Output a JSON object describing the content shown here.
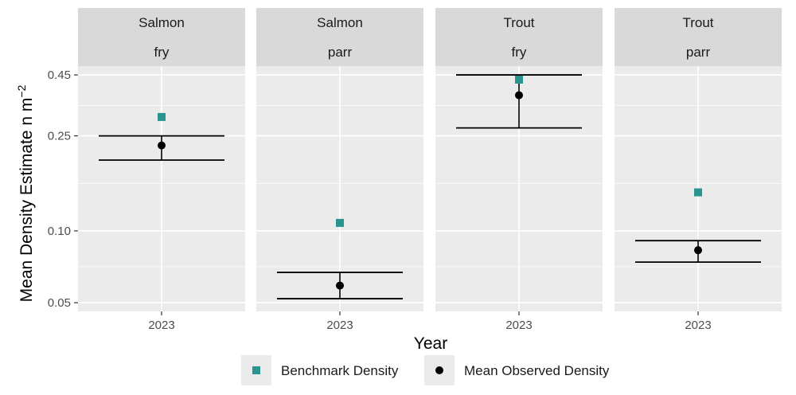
{
  "chart_data": {
    "type": "scatter",
    "title": "",
    "xlabel": "Year",
    "ylabel": "Mean Density Estimate n m",
    "ylabel_superscript": "−2",
    "y_scale": "log",
    "ylim": [
      0.046,
      0.49
    ],
    "yticks": [
      0.05,
      0.1,
      0.25,
      0.45
    ],
    "ytick_labels": [
      "0.05",
      "0.10",
      "0.25",
      "0.45"
    ],
    "legend_position": "bottom",
    "colors": {
      "benchmark": "#2a9490",
      "observed": "#000000"
    },
    "series": [
      {
        "name": "Benchmark Density",
        "marker": "square",
        "color": "#2a9490"
      },
      {
        "name": "Mean Observed Density",
        "marker": "circle",
        "color": "#000000"
      }
    ],
    "panels": [
      {
        "species": "Salmon",
        "stage": "fry",
        "x": "2023",
        "benchmark": 0.3,
        "mean": 0.228,
        "lower": 0.198,
        "upper": 0.25
      },
      {
        "species": "Salmon",
        "stage": "parr",
        "x": "2023",
        "benchmark": 0.108,
        "mean": 0.059,
        "lower": 0.052,
        "upper": 0.067
      },
      {
        "species": "Trout",
        "stage": "fry",
        "x": "2023",
        "benchmark": 0.43,
        "mean": 0.37,
        "lower": 0.27,
        "upper": 0.45
      },
      {
        "species": "Trout",
        "stage": "parr",
        "x": "2023",
        "benchmark": 0.145,
        "mean": 0.083,
        "lower": 0.074,
        "upper": 0.091
      }
    ]
  }
}
